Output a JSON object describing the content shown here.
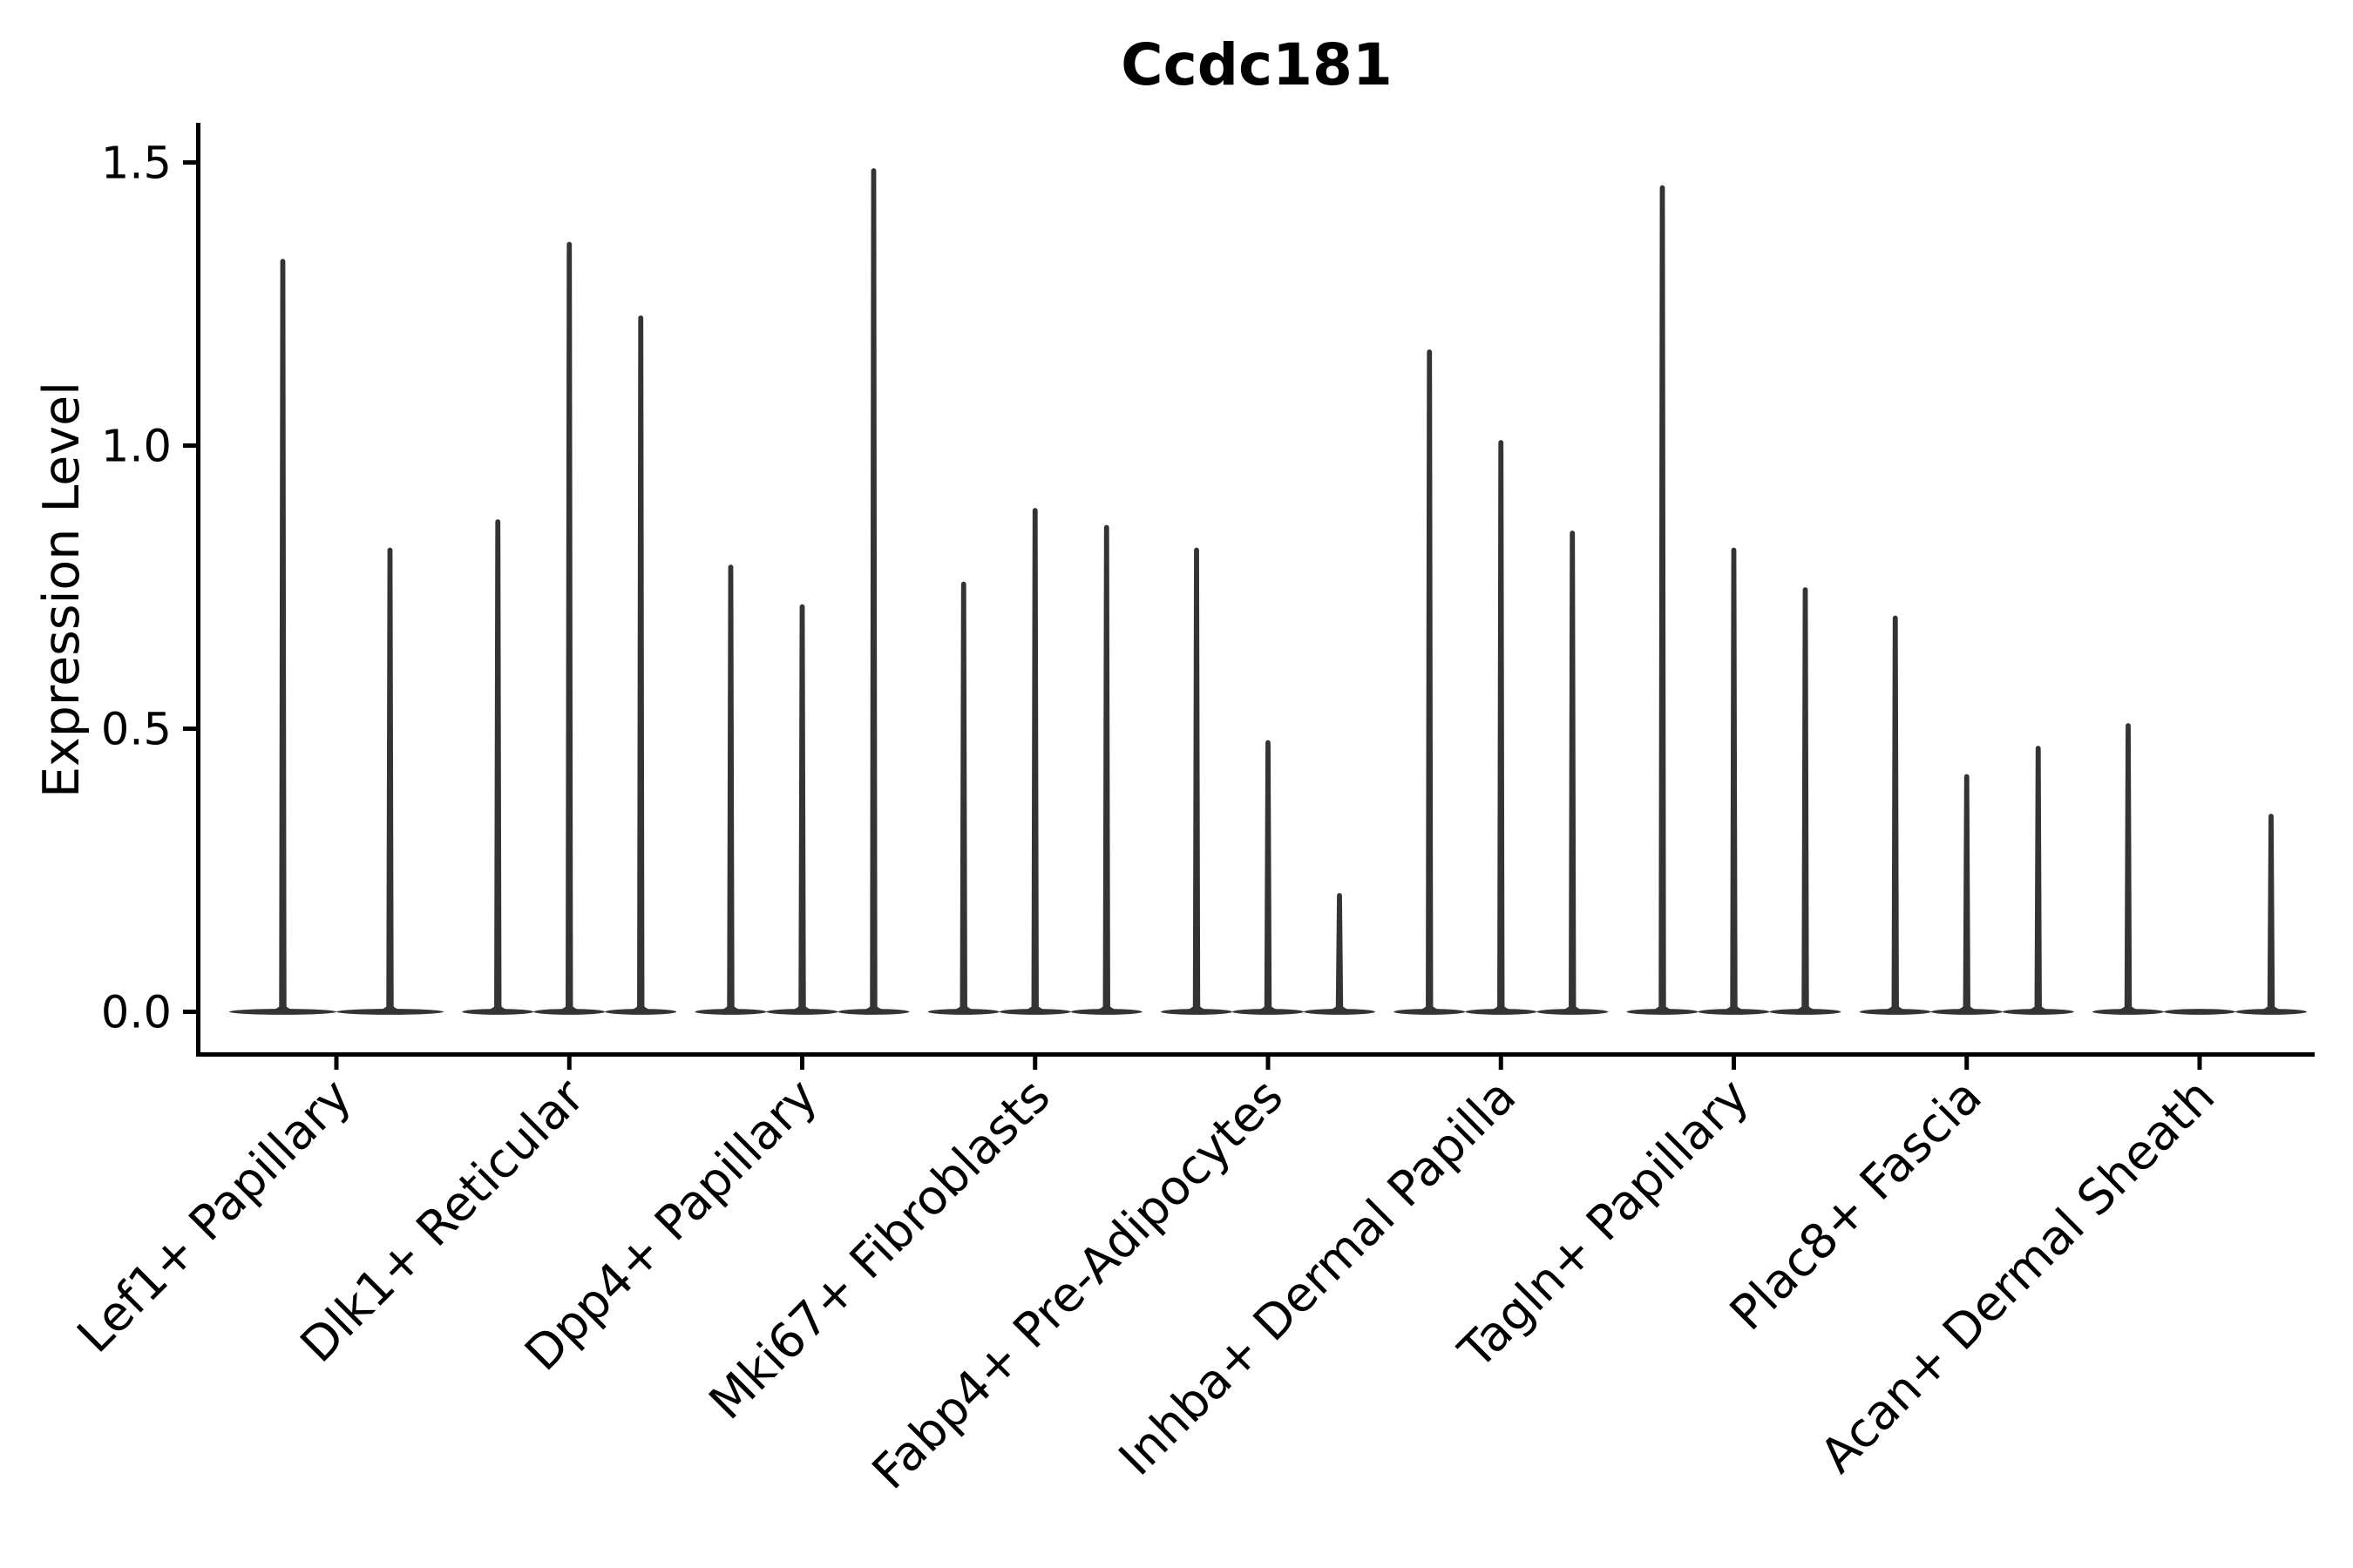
{
  "chart_data": {
    "type": "violin",
    "title": "Ccdc181",
    "ylabel": "Expression Level",
    "xlabel": "",
    "ytick_labels": [
      "0.0",
      "0.5",
      "1.0",
      "1.5"
    ],
    "ytick_values": [
      0.0,
      0.5,
      1.0,
      1.5
    ],
    "ylim": [
      -0.08,
      1.57
    ],
    "grid": false,
    "legend": "none",
    "x_tick_rotation": 45,
    "mark_style": "zero-collapsed violins with thin max-expression spikes",
    "groups": [
      {
        "label": "Lef1+ Papillary",
        "violin_max_expression": [
          1.33,
          0.82
        ]
      },
      {
        "label": "Dlk1+ Reticular",
        "violin_max_expression": [
          0.87,
          1.36,
          1.23
        ]
      },
      {
        "label": "Dpp4+ Papillary",
        "violin_max_expression": [
          0.79,
          0.72,
          1.49
        ]
      },
      {
        "label": "Mki67+ Fibroblasts",
        "violin_max_expression": [
          0.76,
          0.89,
          0.86
        ]
      },
      {
        "label": "Fabp4+ Pre-Adipocytes",
        "violin_max_expression": [
          0.82,
          0.48,
          0.21
        ]
      },
      {
        "label": "Inhba+ Dermal Papilla",
        "violin_max_expression": [
          1.17,
          1.01,
          0.85
        ]
      },
      {
        "label": "Tagln+ Papillary",
        "violin_max_expression": [
          1.46,
          0.82,
          0.75
        ]
      },
      {
        "label": "Plac8+ Fascia",
        "violin_max_expression": [
          0.7,
          0.42,
          0.47
        ]
      },
      {
        "label": "Acan+ Dermal Sheath",
        "violin_max_expression": [
          0.51,
          0.0,
          0.35
        ]
      }
    ]
  },
  "colors": {
    "violin": "#343434",
    "axis": "#000000",
    "text": "#000000",
    "background": "#ffffff"
  }
}
